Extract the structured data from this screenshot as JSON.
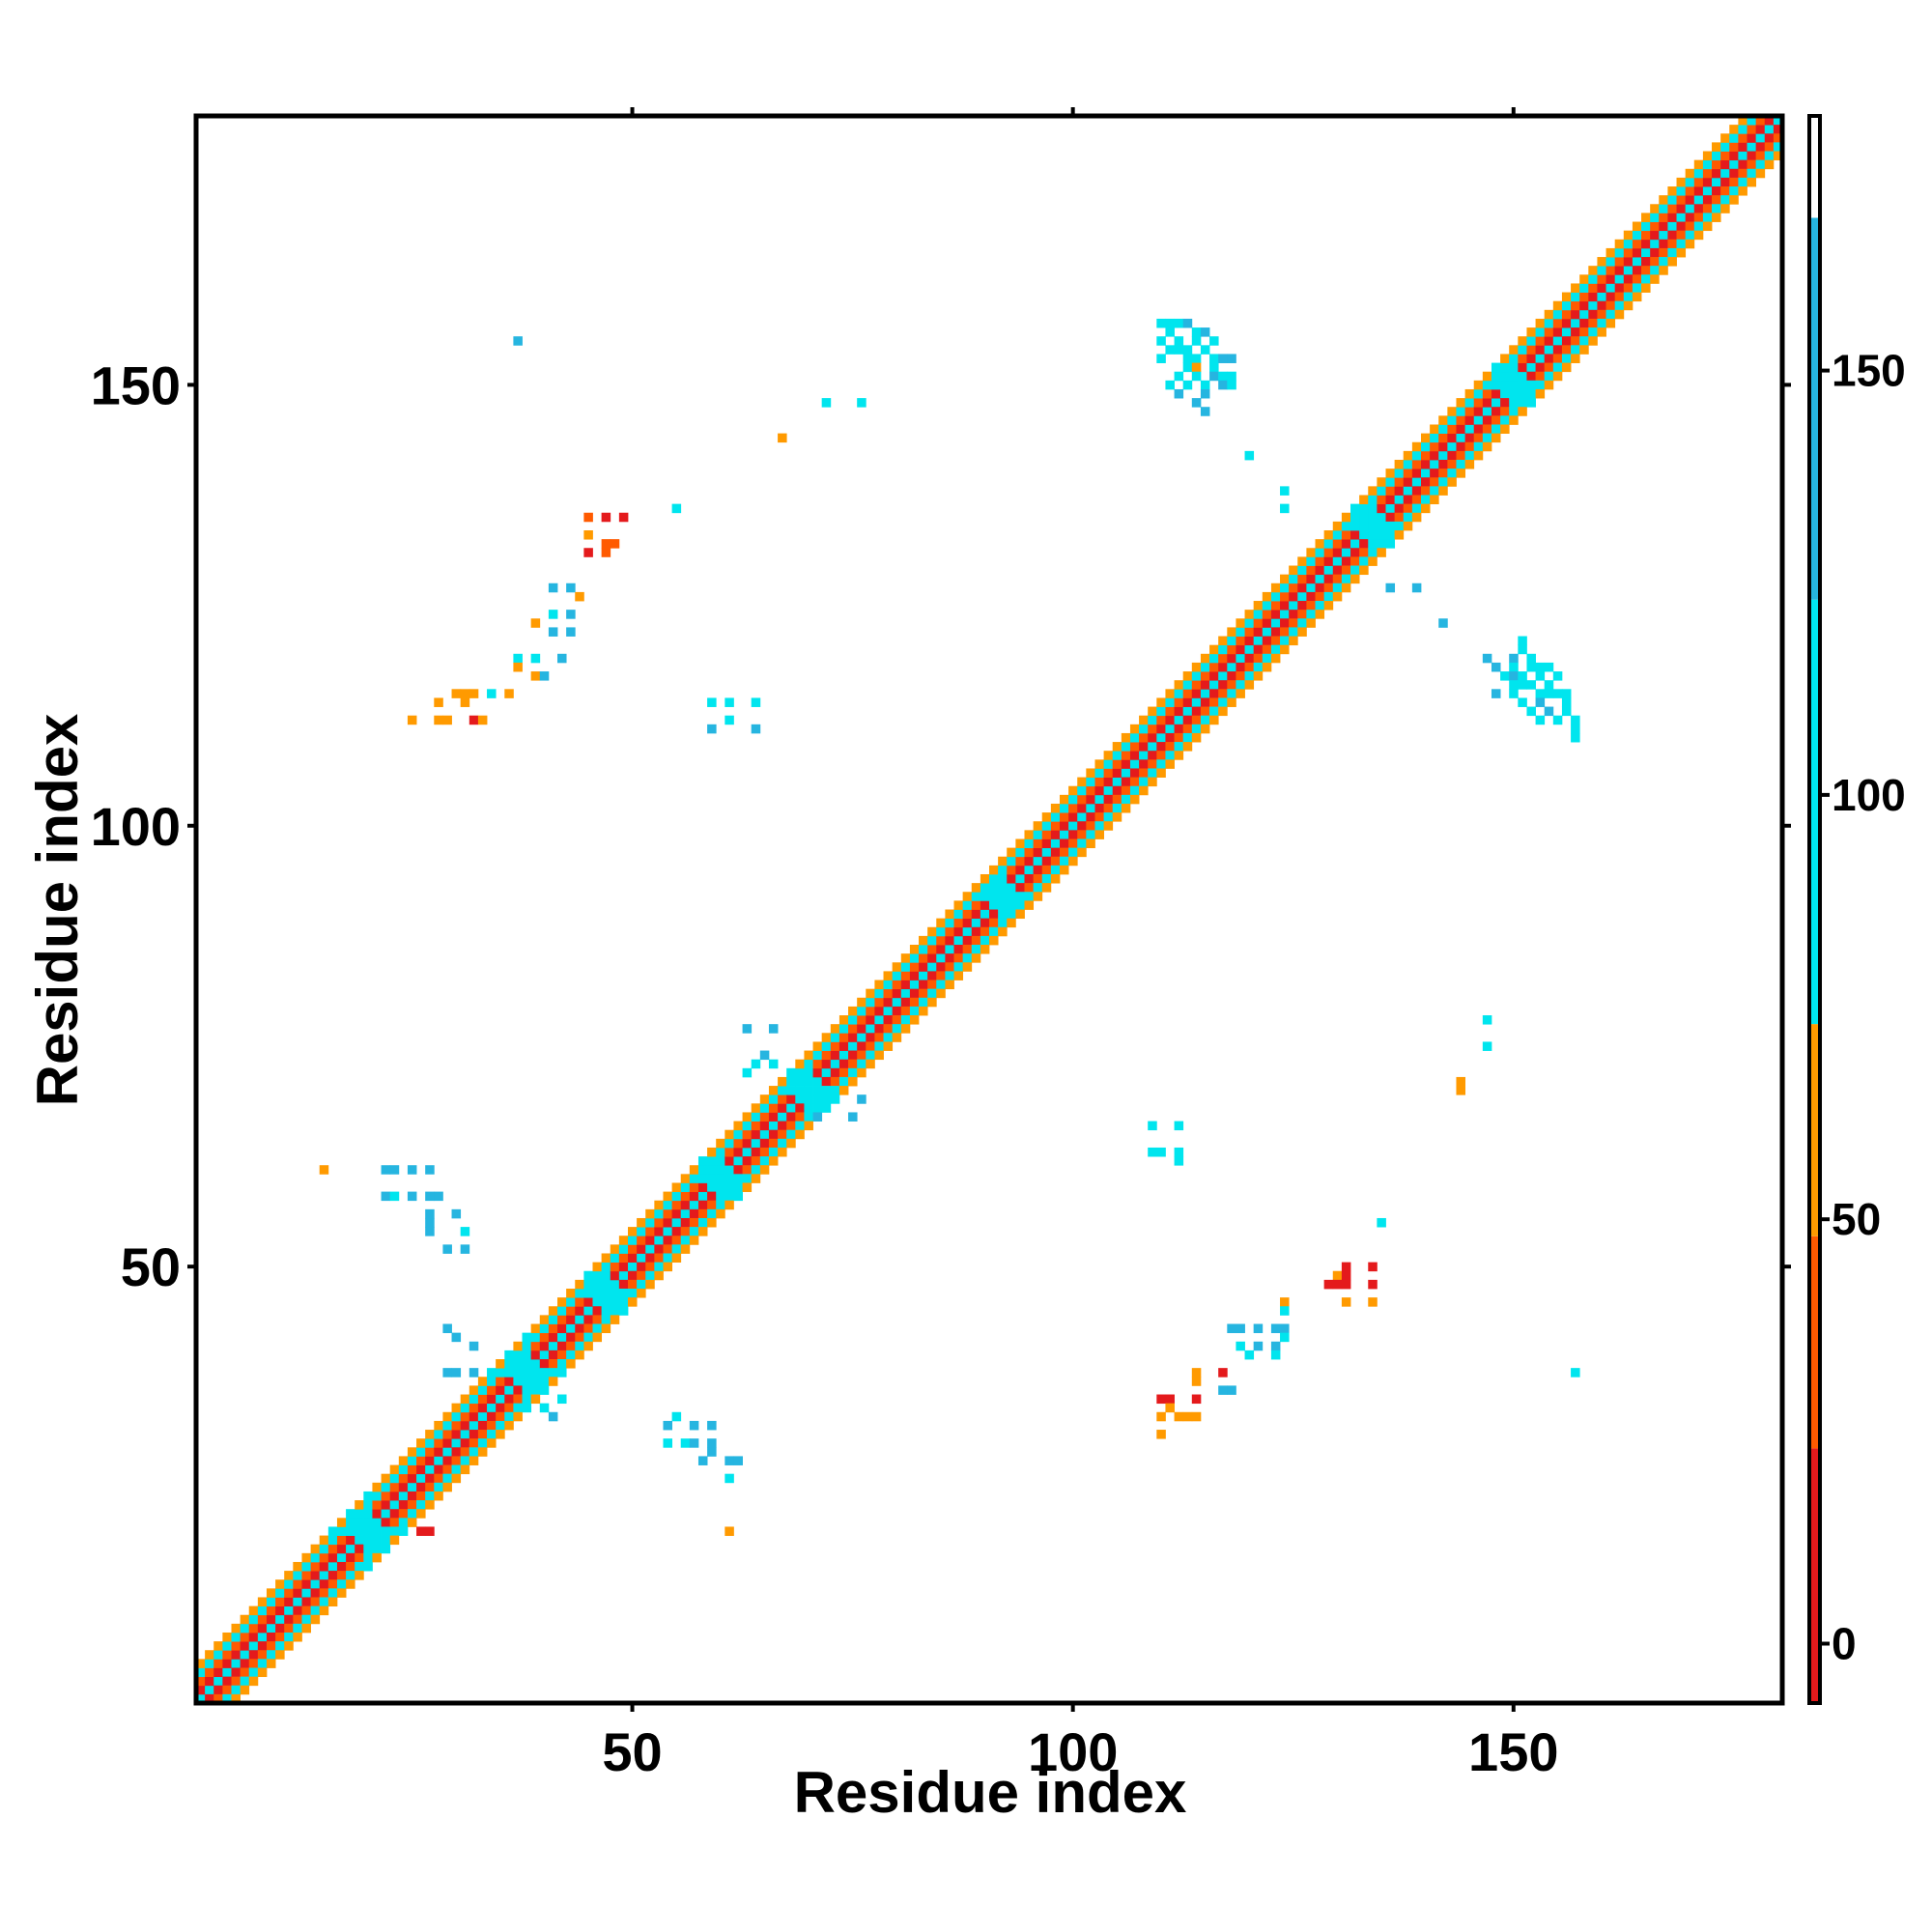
{
  "chart_data": {
    "type": "heatmap",
    "title": "",
    "xlabel": "Residue index",
    "ylabel": "Residue index",
    "xlim": [
      1,
      180
    ],
    "ylim": [
      1,
      180
    ],
    "x_ticks": [
      50,
      100,
      150
    ],
    "y_ticks": [
      50,
      100,
      150
    ],
    "x_tick_labels": [
      "50",
      "100",
      "150"
    ],
    "y_tick_labels": [
      "50",
      "100",
      "150"
    ],
    "grid": false,
    "legend": "none",
    "colorbar": {
      "range": [
        -7,
        180
      ],
      "ticks": [
        0,
        50,
        100,
        150
      ],
      "tick_labels": [
        "0",
        "50",
        "100",
        "150"
      ],
      "bands": [
        {
          "from": -7,
          "to": 23,
          "color": "#e41a1c"
        },
        {
          "from": 23,
          "to": 48,
          "color": "#ff5a00"
        },
        {
          "from": 48,
          "to": 73,
          "color": "#ff9a00"
        },
        {
          "from": 73,
          "to": 123,
          "color": "#00e5ee"
        },
        {
          "from": 123,
          "to": 168,
          "color": "#26b5e0"
        },
        {
          "from": 168,
          "to": 180,
          "color": "#ffffff"
        }
      ]
    },
    "colors": {
      "red": "#e41a1c",
      "orange_red": "#ff5a00",
      "orange": "#ff9a00",
      "cyan": "#00e5ee",
      "sky": "#26b5e0",
      "steel": "#4682b4"
    },
    "diagonal_band": {
      "start": 1,
      "end": 180,
      "halfwidth": 4,
      "pattern": [
        {
          "offset": 0,
          "value": 90
        },
        {
          "offset": 1,
          "value": 10
        },
        {
          "offset": 2,
          "value": 40
        },
        {
          "offset": 3,
          "value": 100
        },
        {
          "offset": 4,
          "value": 60
        }
      ]
    },
    "clusters": [
      {
        "cx": 20,
        "cy": 20,
        "r": 4,
        "value": 100
      },
      {
        "cx": 38,
        "cy": 38,
        "r": 4,
        "value": 100
      },
      {
        "cx": 47,
        "cy": 47,
        "r": 3,
        "value": 100
      },
      {
        "cx": 60,
        "cy": 60,
        "r": 3,
        "value": 100
      },
      {
        "cx": 70,
        "cy": 70,
        "r": 3,
        "value": 100
      },
      {
        "cx": 92,
        "cy": 92,
        "r": 2,
        "value": 100
      },
      {
        "cx": 134,
        "cy": 134,
        "r": 3,
        "value": 100
      },
      {
        "cx": 150,
        "cy": 150,
        "r": 3,
        "value": 100
      }
    ],
    "contacts": [
      [
        37,
        155,
        150
      ],
      [
        72,
        148,
        100
      ],
      [
        76,
        148,
        100
      ],
      [
        67,
        144,
        60
      ],
      [
        45,
        135,
        40
      ],
      [
        47,
        135,
        20
      ],
      [
        49,
        135,
        10
      ],
      [
        45,
        133,
        60
      ],
      [
        47,
        132,
        40
      ],
      [
        48,
        132,
        40
      ],
      [
        45,
        131,
        10
      ],
      [
        47,
        131,
        40
      ],
      [
        55,
        136,
        100
      ],
      [
        41,
        127,
        150
      ],
      [
        43,
        127,
        150
      ],
      [
        44,
        126,
        60
      ],
      [
        41,
        124,
        100
      ],
      [
        43,
        124,
        150
      ],
      [
        39,
        123,
        60
      ],
      [
        41,
        122,
        150
      ],
      [
        43,
        122,
        150
      ],
      [
        37,
        119,
        100
      ],
      [
        39,
        119,
        100
      ],
      [
        42,
        119,
        150
      ],
      [
        37,
        118,
        60
      ],
      [
        39,
        117,
        60
      ],
      [
        40,
        117,
        150
      ],
      [
        30,
        115,
        60
      ],
      [
        31,
        115,
        60
      ],
      [
        32,
        115,
        60
      ],
      [
        34,
        115,
        100
      ],
      [
        36,
        115,
        60
      ],
      [
        28,
        114,
        60
      ],
      [
        31,
        114,
        60
      ],
      [
        25,
        112,
        60
      ],
      [
        28,
        112,
        60
      ],
      [
        29,
        112,
        60
      ],
      [
        32,
        112,
        10
      ],
      [
        33,
        112,
        60
      ],
      [
        59,
        114,
        100
      ],
      [
        61,
        114,
        100
      ],
      [
        64,
        114,
        100
      ],
      [
        61,
        112,
        100
      ],
      [
        59,
        111,
        150
      ],
      [
        64,
        111,
        150
      ],
      [
        110,
        157,
        100
      ],
      [
        111,
        157,
        100
      ],
      [
        112,
        157,
        100
      ],
      [
        113,
        157,
        150
      ],
      [
        111,
        156,
        100
      ],
      [
        114,
        156,
        100
      ],
      [
        115,
        156,
        150
      ],
      [
        110,
        155,
        100
      ],
      [
        112,
        155,
        100
      ],
      [
        114,
        155,
        100
      ],
      [
        116,
        155,
        100
      ],
      [
        111,
        154,
        100
      ],
      [
        112,
        154,
        100
      ],
      [
        113,
        154,
        100
      ],
      [
        115,
        154,
        100
      ],
      [
        110,
        153,
        100
      ],
      [
        113,
        153,
        100
      ],
      [
        114,
        153,
        100
      ],
      [
        116,
        153,
        100
      ],
      [
        117,
        153,
        150
      ],
      [
        118,
        153,
        150
      ],
      [
        113,
        152,
        100
      ],
      [
        114,
        152,
        60
      ],
      [
        116,
        152,
        100
      ],
      [
        112,
        151,
        100
      ],
      [
        114,
        151,
        100
      ],
      [
        116,
        151,
        150
      ],
      [
        117,
        151,
        100
      ],
      [
        118,
        151,
        100
      ],
      [
        111,
        150,
        100
      ],
      [
        113,
        150,
        100
      ],
      [
        115,
        150,
        100
      ],
      [
        117,
        150,
        150
      ],
      [
        118,
        150,
        100
      ],
      [
        112,
        149,
        150
      ],
      [
        115,
        149,
        150
      ],
      [
        114,
        148,
        150
      ],
      [
        115,
        147,
        150
      ],
      [
        120,
        142,
        100
      ],
      [
        124,
        138,
        100
      ],
      [
        124,
        136,
        100
      ],
      [
        136,
        127,
        150
      ],
      [
        139,
        127,
        150
      ],
      [
        142,
        123,
        150
      ],
      [
        147,
        119,
        150
      ],
      [
        150,
        119,
        150
      ],
      [
        152,
        119,
        100
      ],
      [
        151,
        120,
        100
      ],
      [
        151,
        121,
        100
      ],
      [
        148,
        118,
        150
      ],
      [
        150,
        118,
        100
      ],
      [
        152,
        118,
        100
      ],
      [
        153,
        118,
        100
      ],
      [
        154,
        118,
        100
      ],
      [
        149,
        117,
        100
      ],
      [
        150,
        117,
        150
      ],
      [
        151,
        117,
        100
      ],
      [
        153,
        117,
        100
      ],
      [
        155,
        117,
        100
      ],
      [
        150,
        116,
        100
      ],
      [
        151,
        116,
        100
      ],
      [
        152,
        116,
        100
      ],
      [
        154,
        116,
        100
      ],
      [
        148,
        115,
        150
      ],
      [
        150,
        115,
        100
      ],
      [
        153,
        115,
        100
      ],
      [
        154,
        115,
        100
      ],
      [
        155,
        115,
        100
      ],
      [
        156,
        115,
        100
      ],
      [
        151,
        114,
        100
      ],
      [
        153,
        114,
        150
      ],
      [
        156,
        114,
        100
      ],
      [
        152,
        113,
        100
      ],
      [
        154,
        113,
        150
      ],
      [
        156,
        113,
        100
      ],
      [
        153,
        112,
        100
      ],
      [
        155,
        112,
        100
      ],
      [
        157,
        112,
        100
      ],
      [
        157,
        111,
        100
      ],
      [
        157,
        110,
        100
      ],
      [
        147,
        78,
        100
      ],
      [
        147,
        75,
        100
      ],
      [
        144,
        70,
        60
      ],
      [
        144,
        71,
        60
      ],
      [
        109,
        66,
        100
      ],
      [
        112,
        66,
        100
      ],
      [
        109,
        63,
        100
      ],
      [
        110,
        63,
        100
      ],
      [
        112,
        63,
        100
      ],
      [
        112,
        62,
        100
      ],
      [
        135,
        55,
        100
      ],
      [
        131,
        50,
        10
      ],
      [
        134,
        50,
        10
      ],
      [
        130,
        49,
        60
      ],
      [
        131,
        49,
        10
      ],
      [
        129,
        48,
        10
      ],
      [
        130,
        48,
        10
      ],
      [
        131,
        48,
        10
      ],
      [
        134,
        48,
        10
      ],
      [
        131,
        46,
        60
      ],
      [
        134,
        46,
        60
      ],
      [
        124,
        46,
        60
      ],
      [
        124,
        45,
        100
      ],
      [
        118,
        43,
        150
      ],
      [
        119,
        43,
        150
      ],
      [
        121,
        43,
        150
      ],
      [
        123,
        43,
        150
      ],
      [
        124,
        43,
        150
      ],
      [
        124,
        42,
        100
      ],
      [
        119,
        41,
        100
      ],
      [
        121,
        41,
        150
      ],
      [
        123,
        41,
        150
      ],
      [
        120,
        40,
        100
      ],
      [
        123,
        40,
        100
      ],
      [
        114,
        38,
        60
      ],
      [
        117,
        38,
        10
      ],
      [
        114,
        37,
        60
      ],
      [
        117,
        36,
        150
      ],
      [
        118,
        36,
        150
      ],
      [
        110,
        35,
        10
      ],
      [
        111,
        35,
        10
      ],
      [
        114,
        35,
        10
      ],
      [
        111,
        34,
        60
      ],
      [
        110,
        33,
        60
      ],
      [
        112,
        33,
        60
      ],
      [
        113,
        33,
        60
      ],
      [
        114,
        33,
        60
      ],
      [
        110,
        31,
        60
      ],
      [
        157,
        38,
        100
      ],
      [
        32,
        41,
        150
      ],
      [
        30,
        42,
        150
      ],
      [
        29,
        43,
        150
      ],
      [
        29,
        38,
        150
      ],
      [
        30,
        38,
        150
      ],
      [
        32,
        38,
        150
      ],
      [
        42,
        35,
        100
      ],
      [
        40,
        34,
        100
      ],
      [
        41,
        33,
        150
      ],
      [
        55,
        33,
        100
      ],
      [
        54,
        32,
        150
      ],
      [
        57,
        32,
        150
      ],
      [
        59,
        32,
        150
      ],
      [
        54,
        30,
        100
      ],
      [
        56,
        30,
        100
      ],
      [
        57,
        30,
        150
      ],
      [
        59,
        30,
        150
      ],
      [
        59,
        29,
        150
      ],
      [
        58,
        28,
        150
      ],
      [
        61,
        28,
        150
      ],
      [
        62,
        28,
        150
      ],
      [
        61,
        26,
        100
      ],
      [
        61,
        20,
        60
      ],
      [
        26,
        20,
        10
      ],
      [
        27,
        20,
        10
      ],
      [
        15,
        61,
        60
      ],
      [
        22,
        61,
        150
      ],
      [
        23,
        61,
        150
      ],
      [
        25,
        61,
        150
      ],
      [
        27,
        61,
        150
      ],
      [
        22,
        58,
        150
      ],
      [
        23,
        58,
        100
      ],
      [
        25,
        58,
        150
      ],
      [
        27,
        58,
        150
      ],
      [
        28,
        58,
        150
      ],
      [
        27,
        56,
        150
      ],
      [
        30,
        56,
        150
      ],
      [
        27,
        55,
        150
      ],
      [
        27,
        54,
        150
      ],
      [
        31,
        54,
        100
      ],
      [
        29,
        52,
        150
      ],
      [
        31,
        52,
        150
      ],
      [
        63,
        77,
        150
      ],
      [
        66,
        77,
        150
      ],
      [
        65,
        74,
        150
      ],
      [
        64,
        73,
        100
      ],
      [
        66,
        73,
        100
      ],
      [
        63,
        72,
        100
      ],
      [
        71,
        67,
        150
      ],
      [
        75,
        67,
        150
      ],
      [
        73,
        69,
        100
      ],
      [
        76,
        69,
        150
      ],
      [
        71,
        68,
        100
      ]
    ]
  }
}
